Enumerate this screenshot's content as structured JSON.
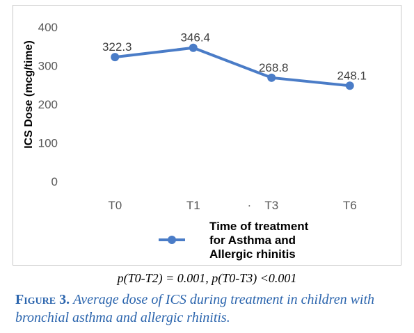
{
  "chart_data": {
    "type": "line",
    "categories": [
      "T0",
      "T1",
      "T3",
      "T6"
    ],
    "series": [
      {
        "name": "Time of treatment for Asthma and Allergic rhinitis",
        "values": [
          322.3,
          346.4,
          268.8,
          248.1
        ],
        "data_labels": [
          "322.3",
          "346.4",
          "268.8",
          "248.1"
        ],
        "color": "#4a7cc7"
      }
    ],
    "ylabel": "ICS Dose (mcg/time)",
    "xlabel": "",
    "ylim": [
      0,
      400
    ],
    "yticks": [
      0,
      100,
      200,
      300,
      400
    ],
    "ytick_labels": [
      "0",
      "100",
      "200",
      "300",
      "400"
    ],
    "grid": false,
    "legend_position": "bottom",
    "stray_mark": "."
  },
  "legend_lines": [
    "Time of treatment",
    "for Asthma and",
    "Allergic rhinitis"
  ],
  "stat_text": "p(T0-T2) = 0.001, p(T0-T3) <0.001",
  "caption": {
    "prefix": "Figure 3.",
    "text": "Average dose of ICS during treatment in children with bronchial asthma and allergic rhinitis."
  }
}
